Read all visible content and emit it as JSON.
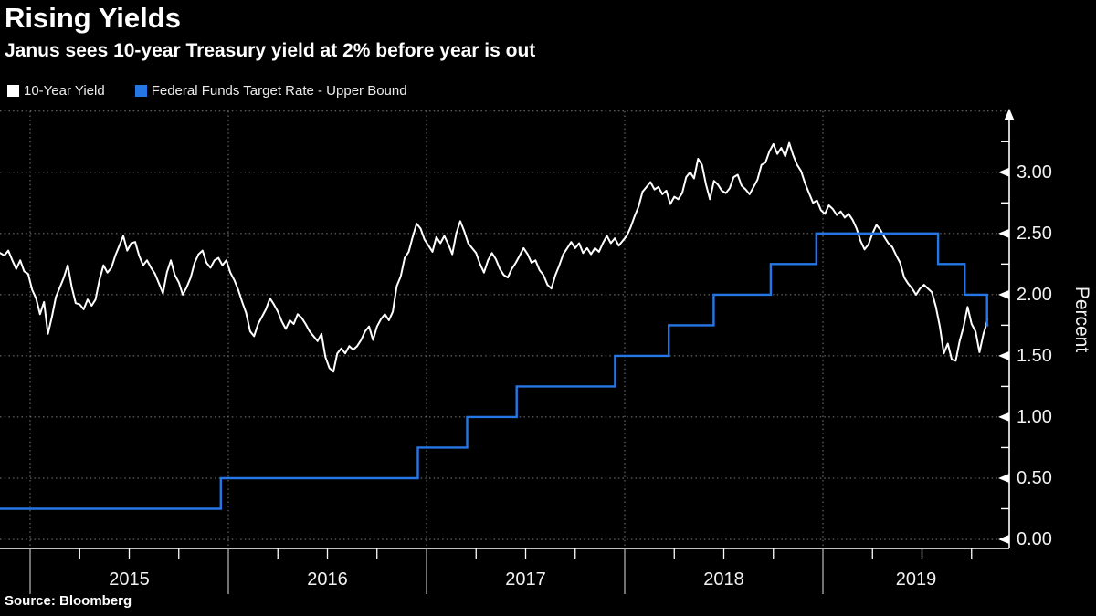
{
  "header": {
    "title": "Rising Yields",
    "subtitle": "Janus sees 10-year Treasury yield at 2% before year is out"
  },
  "legend": [
    {
      "label": "10-Year Yield",
      "color": "#ffffff"
    },
    {
      "label": "Federal Funds Target Rate - Upper Bound",
      "color": "#2577e6"
    }
  ],
  "footer": {
    "source": "Source: Bloomberg"
  },
  "colors": {
    "background": "#000000",
    "grid": "#7d7d7d",
    "axis": "#ffffff",
    "tick_label": "#f2f2f2",
    "year_separator": "#bdbdbd",
    "white_line": "#ffffff",
    "blue_line": "#2577e6"
  },
  "chart_data": {
    "type": "line",
    "title": "Rising Yields",
    "subtitle": "Janus sees 10-year Treasury yield at 2% before year is out",
    "source": "Source: Bloomberg",
    "xlabel": "",
    "ylabel": "Percent",
    "ylim": [
      0,
      3.5
    ],
    "x_domain_years": [
      2014.848,
      2019.835
    ],
    "grid": true,
    "legend_position": "top",
    "y_major_ticks": [
      {
        "value": 0.0,
        "label": "0.00"
      },
      {
        "value": 0.5,
        "label": "0.50"
      },
      {
        "value": 1.0,
        "label": "1.00"
      },
      {
        "value": 1.5,
        "label": "1.50"
      },
      {
        "value": 2.0,
        "label": "2.00"
      },
      {
        "value": 2.5,
        "label": "2.50"
      },
      {
        "value": 3.0,
        "label": "3.00"
      }
    ],
    "y_minor_step": 0.25,
    "y_gridline_values": [
      0,
      0.5,
      1.0,
      1.5,
      2.0,
      2.5,
      3.0,
      3.5
    ],
    "x_year_boundaries": [
      2015,
      2016,
      2017,
      2018,
      2019
    ],
    "x_year_labels": [
      "2015",
      "2016",
      "2017",
      "2018",
      "2019"
    ],
    "x_minor_tick_fraction": 0.25,
    "series": [
      {
        "name": "10-Year Yield",
        "type": "line",
        "color": "#ffffff",
        "points": [
          [
            2014.85,
            2.34
          ],
          [
            2014.87,
            2.32
          ],
          [
            2014.89,
            2.36
          ],
          [
            2014.91,
            2.28
          ],
          [
            2014.93,
            2.21
          ],
          [
            2014.95,
            2.28
          ],
          [
            2014.97,
            2.19
          ],
          [
            2014.99,
            2.17
          ],
          [
            2015.01,
            2.04
          ],
          [
            2015.03,
            1.97
          ],
          [
            2015.05,
            1.84
          ],
          [
            2015.07,
            1.94
          ],
          [
            2015.09,
            1.68
          ],
          [
            2015.11,
            1.82
          ],
          [
            2015.13,
            1.98
          ],
          [
            2015.15,
            2.06
          ],
          [
            2015.17,
            2.14
          ],
          [
            2015.19,
            2.24
          ],
          [
            2015.21,
            2.06
          ],
          [
            2015.23,
            1.93
          ],
          [
            2015.25,
            1.92
          ],
          [
            2015.27,
            1.88
          ],
          [
            2015.29,
            1.96
          ],
          [
            2015.31,
            1.91
          ],
          [
            2015.33,
            1.96
          ],
          [
            2015.35,
            2.12
          ],
          [
            2015.37,
            2.24
          ],
          [
            2015.39,
            2.18
          ],
          [
            2015.41,
            2.22
          ],
          [
            2015.43,
            2.32
          ],
          [
            2015.45,
            2.4
          ],
          [
            2015.47,
            2.48
          ],
          [
            2015.49,
            2.36
          ],
          [
            2015.51,
            2.42
          ],
          [
            2015.53,
            2.43
          ],
          [
            2015.55,
            2.32
          ],
          [
            2015.57,
            2.24
          ],
          [
            2015.59,
            2.28
          ],
          [
            2015.61,
            2.22
          ],
          [
            2015.63,
            2.17
          ],
          [
            2015.65,
            2.09
          ],
          [
            2015.67,
            2.01
          ],
          [
            2015.69,
            2.18
          ],
          [
            2015.71,
            2.28
          ],
          [
            2015.73,
            2.16
          ],
          [
            2015.75,
            2.1
          ],
          [
            2015.77,
            2.0
          ],
          [
            2015.79,
            2.06
          ],
          [
            2015.81,
            2.14
          ],
          [
            2015.83,
            2.26
          ],
          [
            2015.85,
            2.33
          ],
          [
            2015.87,
            2.36
          ],
          [
            2015.89,
            2.26
          ],
          [
            2015.91,
            2.22
          ],
          [
            2015.93,
            2.28
          ],
          [
            2015.95,
            2.3
          ],
          [
            2015.97,
            2.24
          ],
          [
            2015.99,
            2.28
          ],
          [
            2016.01,
            2.18
          ],
          [
            2016.03,
            2.12
          ],
          [
            2016.05,
            2.04
          ],
          [
            2016.07,
            1.94
          ],
          [
            2016.09,
            1.85
          ],
          [
            2016.11,
            1.7
          ],
          [
            2016.13,
            1.66
          ],
          [
            2016.15,
            1.76
          ],
          [
            2016.17,
            1.82
          ],
          [
            2016.19,
            1.88
          ],
          [
            2016.21,
            1.97
          ],
          [
            2016.23,
            1.92
          ],
          [
            2016.25,
            1.86
          ],
          [
            2016.27,
            1.78
          ],
          [
            2016.29,
            1.72
          ],
          [
            2016.31,
            1.79
          ],
          [
            2016.33,
            1.76
          ],
          [
            2016.35,
            1.84
          ],
          [
            2016.37,
            1.81
          ],
          [
            2016.39,
            1.76
          ],
          [
            2016.41,
            1.7
          ],
          [
            2016.43,
            1.66
          ],
          [
            2016.45,
            1.62
          ],
          [
            2016.47,
            1.68
          ],
          [
            2016.49,
            1.49
          ],
          [
            2016.51,
            1.4
          ],
          [
            2016.53,
            1.37
          ],
          [
            2016.55,
            1.52
          ],
          [
            2016.57,
            1.56
          ],
          [
            2016.59,
            1.52
          ],
          [
            2016.61,
            1.58
          ],
          [
            2016.63,
            1.55
          ],
          [
            2016.65,
            1.58
          ],
          [
            2016.67,
            1.63
          ],
          [
            2016.69,
            1.7
          ],
          [
            2016.71,
            1.74
          ],
          [
            2016.73,
            1.63
          ],
          [
            2016.75,
            1.74
          ],
          [
            2016.77,
            1.8
          ],
          [
            2016.79,
            1.84
          ],
          [
            2016.81,
            1.79
          ],
          [
            2016.83,
            1.86
          ],
          [
            2016.85,
            2.07
          ],
          [
            2016.87,
            2.15
          ],
          [
            2016.89,
            2.3
          ],
          [
            2016.91,
            2.35
          ],
          [
            2016.93,
            2.47
          ],
          [
            2016.95,
            2.58
          ],
          [
            2016.97,
            2.54
          ],
          [
            2016.99,
            2.45
          ],
          [
            2017.01,
            2.4
          ],
          [
            2017.03,
            2.35
          ],
          [
            2017.05,
            2.47
          ],
          [
            2017.07,
            2.42
          ],
          [
            2017.09,
            2.48
          ],
          [
            2017.11,
            2.41
          ],
          [
            2017.13,
            2.33
          ],
          [
            2017.15,
            2.5
          ],
          [
            2017.17,
            2.6
          ],
          [
            2017.19,
            2.52
          ],
          [
            2017.21,
            2.42
          ],
          [
            2017.23,
            2.38
          ],
          [
            2017.25,
            2.34
          ],
          [
            2017.27,
            2.25
          ],
          [
            2017.29,
            2.18
          ],
          [
            2017.31,
            2.28
          ],
          [
            2017.33,
            2.34
          ],
          [
            2017.35,
            2.29
          ],
          [
            2017.37,
            2.21
          ],
          [
            2017.39,
            2.16
          ],
          [
            2017.41,
            2.14
          ],
          [
            2017.43,
            2.21
          ],
          [
            2017.45,
            2.26
          ],
          [
            2017.47,
            2.32
          ],
          [
            2017.49,
            2.38
          ],
          [
            2017.51,
            2.33
          ],
          [
            2017.53,
            2.26
          ],
          [
            2017.55,
            2.28
          ],
          [
            2017.57,
            2.2
          ],
          [
            2017.59,
            2.16
          ],
          [
            2017.61,
            2.08
          ],
          [
            2017.63,
            2.05
          ],
          [
            2017.65,
            2.16
          ],
          [
            2017.67,
            2.24
          ],
          [
            2017.69,
            2.33
          ],
          [
            2017.71,
            2.38
          ],
          [
            2017.73,
            2.43
          ],
          [
            2017.75,
            2.38
          ],
          [
            2017.77,
            2.42
          ],
          [
            2017.79,
            2.34
          ],
          [
            2017.81,
            2.38
          ],
          [
            2017.83,
            2.33
          ],
          [
            2017.85,
            2.38
          ],
          [
            2017.87,
            2.35
          ],
          [
            2017.89,
            2.42
          ],
          [
            2017.91,
            2.48
          ],
          [
            2017.93,
            2.42
          ],
          [
            2017.95,
            2.46
          ],
          [
            2017.97,
            2.4
          ],
          [
            2017.99,
            2.44
          ],
          [
            2018.01,
            2.48
          ],
          [
            2018.03,
            2.55
          ],
          [
            2018.05,
            2.64
          ],
          [
            2018.07,
            2.72
          ],
          [
            2018.09,
            2.84
          ],
          [
            2018.11,
            2.88
          ],
          [
            2018.13,
            2.92
          ],
          [
            2018.15,
            2.86
          ],
          [
            2018.17,
            2.88
          ],
          [
            2018.19,
            2.82
          ],
          [
            2018.21,
            2.85
          ],
          [
            2018.23,
            2.74
          ],
          [
            2018.25,
            2.8
          ],
          [
            2018.27,
            2.78
          ],
          [
            2018.29,
            2.83
          ],
          [
            2018.31,
            2.96
          ],
          [
            2018.33,
            3.0
          ],
          [
            2018.35,
            2.95
          ],
          [
            2018.37,
            3.11
          ],
          [
            2018.39,
            3.06
          ],
          [
            2018.41,
            2.9
          ],
          [
            2018.43,
            2.78
          ],
          [
            2018.45,
            2.93
          ],
          [
            2018.47,
            2.9
          ],
          [
            2018.49,
            2.85
          ],
          [
            2018.51,
            2.83
          ],
          [
            2018.53,
            2.87
          ],
          [
            2018.55,
            2.96
          ],
          [
            2018.57,
            2.98
          ],
          [
            2018.59,
            2.89
          ],
          [
            2018.61,
            2.86
          ],
          [
            2018.63,
            2.82
          ],
          [
            2018.65,
            2.88
          ],
          [
            2018.67,
            2.94
          ],
          [
            2018.69,
            3.06
          ],
          [
            2018.71,
            3.08
          ],
          [
            2018.73,
            3.17
          ],
          [
            2018.75,
            3.23
          ],
          [
            2018.77,
            3.15
          ],
          [
            2018.79,
            3.2
          ],
          [
            2018.81,
            3.13
          ],
          [
            2018.83,
            3.24
          ],
          [
            2018.85,
            3.14
          ],
          [
            2018.87,
            3.06
          ],
          [
            2018.89,
            3.01
          ],
          [
            2018.91,
            2.91
          ],
          [
            2018.93,
            2.83
          ],
          [
            2018.95,
            2.75
          ],
          [
            2018.97,
            2.77
          ],
          [
            2018.99,
            2.69
          ],
          [
            2019.01,
            2.66
          ],
          [
            2019.03,
            2.73
          ],
          [
            2019.05,
            2.7
          ],
          [
            2019.07,
            2.65
          ],
          [
            2019.09,
            2.68
          ],
          [
            2019.11,
            2.63
          ],
          [
            2019.13,
            2.66
          ],
          [
            2019.15,
            2.61
          ],
          [
            2019.17,
            2.54
          ],
          [
            2019.19,
            2.44
          ],
          [
            2019.21,
            2.37
          ],
          [
            2019.23,
            2.41
          ],
          [
            2019.25,
            2.5
          ],
          [
            2019.27,
            2.57
          ],
          [
            2019.29,
            2.53
          ],
          [
            2019.31,
            2.47
          ],
          [
            2019.33,
            2.42
          ],
          [
            2019.35,
            2.39
          ],
          [
            2019.37,
            2.32
          ],
          [
            2019.39,
            2.26
          ],
          [
            2019.41,
            2.14
          ],
          [
            2019.43,
            2.09
          ],
          [
            2019.45,
            2.05
          ],
          [
            2019.47,
            2.0
          ],
          [
            2019.49,
            2.05
          ],
          [
            2019.51,
            2.08
          ],
          [
            2019.53,
            2.05
          ],
          [
            2019.55,
            2.02
          ],
          [
            2019.57,
            1.9
          ],
          [
            2019.59,
            1.74
          ],
          [
            2019.61,
            1.52
          ],
          [
            2019.63,
            1.6
          ],
          [
            2019.65,
            1.47
          ],
          [
            2019.67,
            1.46
          ],
          [
            2019.69,
            1.62
          ],
          [
            2019.71,
            1.74
          ],
          [
            2019.73,
            1.9
          ],
          [
            2019.75,
            1.76
          ],
          [
            2019.77,
            1.7
          ],
          [
            2019.79,
            1.53
          ],
          [
            2019.81,
            1.68
          ],
          [
            2019.82,
            1.73
          ],
          [
            2019.83,
            1.8
          ]
        ]
      },
      {
        "name": "Federal Funds Target Rate - Upper Bound",
        "type": "step-after",
        "color": "#2577e6",
        "points": [
          [
            2014.848,
            0.25
          ],
          [
            2015.962,
            0.5
          ],
          [
            2016.956,
            0.75
          ],
          [
            2017.205,
            1.0
          ],
          [
            2017.455,
            1.25
          ],
          [
            2017.951,
            1.5
          ],
          [
            2018.222,
            1.75
          ],
          [
            2018.449,
            2.0
          ],
          [
            2018.737,
            2.25
          ],
          [
            2018.967,
            2.5
          ],
          [
            2019.581,
            2.25
          ],
          [
            2019.715,
            2.0
          ],
          [
            2019.828,
            1.75
          ]
        ]
      }
    ]
  }
}
